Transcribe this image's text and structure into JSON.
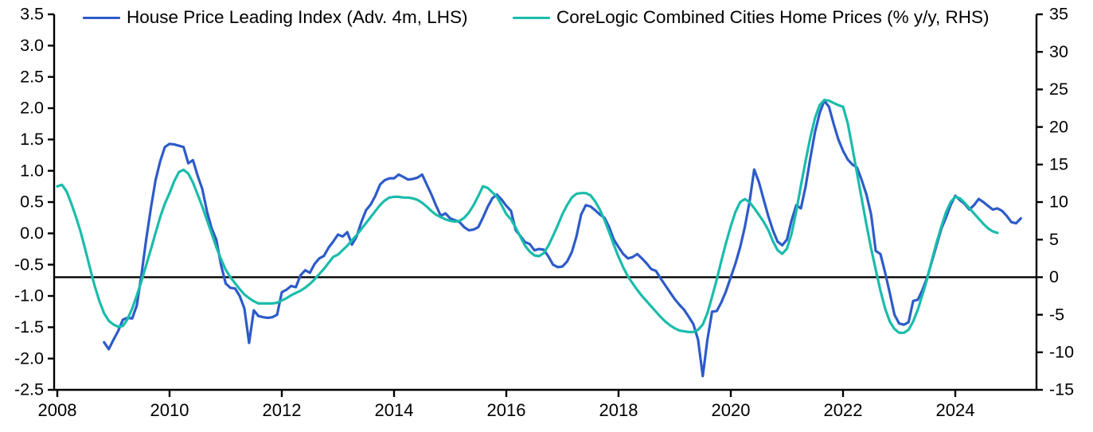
{
  "chart_data": {
    "type": "line",
    "title": "",
    "xlabel": "",
    "ylabel_left": "",
    "ylabel_right": "",
    "grid": false,
    "legend_position": "top",
    "x_range": [
      2008,
      2025.45
    ],
    "x_ticks": [
      2008,
      2010,
      2012,
      2014,
      2016,
      2018,
      2020,
      2022,
      2024
    ],
    "left_axis": {
      "min": -2.5,
      "max": 3.5,
      "ticks": [
        3.5,
        3.0,
        2.5,
        2.0,
        1.5,
        1.0,
        0.5,
        0.0,
        -0.5,
        -1.0,
        -1.5,
        -2.0,
        -2.5
      ]
    },
    "right_axis": {
      "min": -15,
      "max": 35,
      "ticks": [
        35,
        30,
        25,
        20,
        15,
        10,
        5,
        0,
        -5,
        -10,
        -15
      ]
    },
    "zero_line": {
      "axis": "right",
      "value": 0,
      "color": "#000000"
    },
    "axis_color": "#000000",
    "series": [
      {
        "name": "House Price Leading Index (Adv. 4m, LHS)",
        "axis": "left",
        "color": "#2d5bc8",
        "frequency": "monthly",
        "start_year": 2008,
        "start_month": 11,
        "values": [
          -1.74,
          -1.85,
          -1.7,
          -1.56,
          -1.38,
          -1.35,
          -1.36,
          -1.15,
          -0.65,
          -0.1,
          0.4,
          0.85,
          1.15,
          1.38,
          1.43,
          1.42,
          1.4,
          1.38,
          1.12,
          1.17,
          0.92,
          0.71,
          0.35,
          0.08,
          -0.1,
          -0.5,
          -0.8,
          -0.87,
          -0.88,
          -1.0,
          -1.2,
          -1.75,
          -1.23,
          -1.32,
          -1.34,
          -1.35,
          -1.34,
          -1.3,
          -0.94,
          -0.9,
          -0.84,
          -0.86,
          -0.67,
          -0.59,
          -0.63,
          -0.49,
          -0.4,
          -0.36,
          -0.23,
          -0.13,
          -0.02,
          -0.05,
          0.02,
          -0.18,
          -0.05,
          0.18,
          0.37,
          0.46,
          0.6,
          0.78,
          0.85,
          0.88,
          0.88,
          0.94,
          0.9,
          0.86,
          0.87,
          0.89,
          0.94,
          0.78,
          0.62,
          0.44,
          0.28,
          0.32,
          0.24,
          0.21,
          0.18,
          0.1,
          0.05,
          0.06,
          0.1,
          0.25,
          0.42,
          0.56,
          0.62,
          0.54,
          0.44,
          0.36,
          0.05,
          -0.04,
          -0.14,
          -0.17,
          -0.27,
          -0.25,
          -0.26,
          -0.37,
          -0.5,
          -0.54,
          -0.53,
          -0.45,
          -0.3,
          -0.05,
          0.3,
          0.45,
          0.43,
          0.37,
          0.3,
          0.25,
          0.1,
          -0.1,
          -0.22,
          -0.33,
          -0.4,
          -0.38,
          -0.33,
          -0.4,
          -0.48,
          -0.57,
          -0.6,
          -0.72,
          -0.83,
          -0.94,
          -1.05,
          -1.14,
          -1.22,
          -1.33,
          -1.45,
          -1.7,
          -2.28,
          -1.7,
          -1.25,
          -1.24,
          -1.1,
          -0.92,
          -0.7,
          -0.48,
          -0.22,
          0.1,
          0.5,
          1.02,
          0.82,
          0.55,
          0.28,
          0.05,
          -0.13,
          -0.19,
          -0.1,
          0.21,
          0.45,
          0.4,
          0.75,
          1.2,
          1.62,
          1.92,
          2.12,
          2.02,
          1.75,
          1.5,
          1.32,
          1.18,
          1.1,
          1.05,
          0.85,
          0.62,
          0.3,
          -0.28,
          -0.33,
          -0.63,
          -0.95,
          -1.3,
          -1.44,
          -1.46,
          -1.42,
          -1.08,
          -1.06,
          -0.9,
          -0.7,
          -0.45,
          -0.19,
          0.07,
          0.25,
          0.45,
          0.6,
          0.53,
          0.47,
          0.38,
          0.45,
          0.55,
          0.5,
          0.44,
          0.38,
          0.4,
          0.36,
          0.28,
          0.18,
          0.16,
          0.24
        ]
      },
      {
        "name": "CoreLogic Combined Cities Home Prices (% y/y, RHS)",
        "axis": "right",
        "color": "#1abcab",
        "frequency": "monthly",
        "start_year": 2008,
        "start_month": 1,
        "values": [
          12.1,
          12.3,
          11.4,
          9.8,
          8.0,
          6.0,
          3.6,
          1.2,
          -1.2,
          -3.2,
          -4.8,
          -5.8,
          -6.3,
          -6.6,
          -6.5,
          -5.6,
          -4.2,
          -2.4,
          -0.5,
          1.6,
          3.7,
          5.9,
          8.0,
          9.8,
          11.2,
          12.8,
          14.0,
          14.3,
          13.8,
          12.6,
          11.0,
          9.4,
          7.6,
          5.8,
          4.0,
          2.4,
          1.0,
          0.0,
          -0.8,
          -1.6,
          -2.3,
          -2.8,
          -3.2,
          -3.5,
          -3.5,
          -3.5,
          -3.5,
          -3.4,
          -3.1,
          -2.8,
          -2.4,
          -2.1,
          -1.8,
          -1.4,
          -0.9,
          -0.3,
          0.4,
          1.1,
          1.9,
          2.7,
          3.0,
          3.6,
          4.2,
          4.9,
          5.6,
          6.4,
          7.2,
          8.0,
          8.8,
          9.6,
          10.2,
          10.6,
          10.7,
          10.7,
          10.6,
          10.6,
          10.5,
          10.3,
          9.9,
          9.4,
          8.8,
          8.3,
          8.0,
          7.7,
          7.5,
          7.4,
          7.5,
          7.9,
          8.6,
          9.6,
          10.8,
          12.1,
          11.9,
          11.3,
          10.7,
          9.6,
          8.4,
          7.7,
          6.6,
          5.4,
          4.2,
          3.4,
          2.9,
          2.8,
          3.2,
          4.2,
          5.5,
          6.9,
          8.4,
          9.6,
          10.6,
          11.1,
          11.2,
          11.2,
          10.9,
          10.1,
          9.0,
          7.6,
          6.0,
          4.3,
          2.7,
          1.3,
          0.1,
          -0.8,
          -1.7,
          -2.5,
          -3.2,
          -3.9,
          -4.6,
          -5.3,
          -5.9,
          -6.4,
          -6.8,
          -7.1,
          -7.2,
          -7.3,
          -7.3,
          -7.0,
          -6.3,
          -4.8,
          -2.6,
          -0.3,
          2.2,
          4.6,
          6.8,
          8.7,
          10.0,
          10.4,
          10.0,
          9.2,
          8.3,
          7.4,
          6.3,
          4.8,
          3.6,
          3.1,
          3.8,
          5.8,
          8.8,
          12.2,
          15.5,
          18.6,
          21.2,
          22.9,
          23.6,
          23.5,
          23.2,
          22.9,
          22.7,
          20.5,
          17.2,
          13.8,
          10.4,
          7.0,
          3.8,
          1.0,
          -1.8,
          -4.2,
          -5.9,
          -6.9,
          -7.4,
          -7.4,
          -7.0,
          -5.9,
          -4.3,
          -2.3,
          -0.2,
          2.3,
          4.6,
          6.7,
          8.6,
          10.0,
          10.7,
          10.5,
          9.9,
          9.2,
          8.5,
          7.8,
          7.1,
          6.5,
          6.1,
          5.9
        ]
      }
    ]
  }
}
